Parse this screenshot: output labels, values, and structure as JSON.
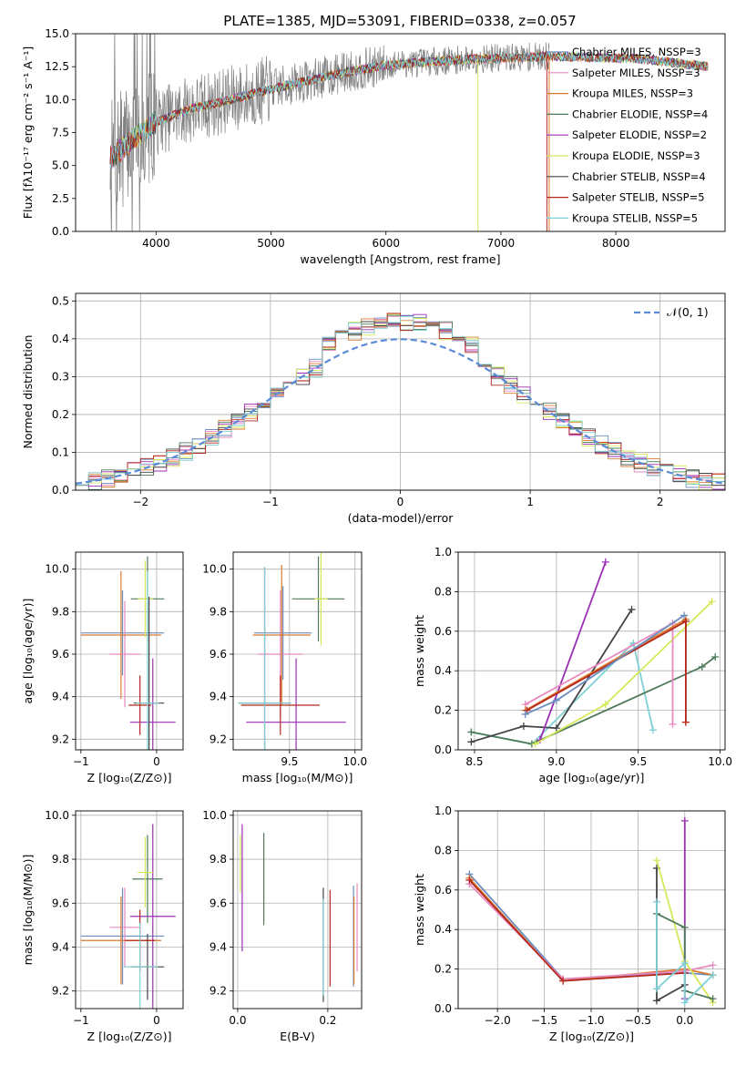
{
  "figure_title": "PLATE=1385, MJD=53091, FIBERID=0338, z=0.057",
  "colors": {
    "cm": "#6c8ebf",
    "sm": "#e88ac0",
    "km": "#d97a30",
    "ce": "#4e7a5a",
    "se": "#9a2fb5",
    "ke": "#d6e85a",
    "cs": "#444444",
    "ss": "#b5281e",
    "ks": "#7fd0d6",
    "data": "#808080",
    "normal": "#5b8bd6"
  },
  "chart_data": [
    {
      "id": "spectrum",
      "type": "line",
      "xlabel": "wavelength [Angstrom, rest frame]",
      "ylabel": "Flux [fλ10⁻¹⁷ erg cm⁻² s⁻¹ A⁻¹]",
      "xlim": [
        3300,
        8950
      ],
      "ylim": [
        0,
        15
      ],
      "xticks": [
        "4000",
        "5000",
        "6000",
        "7000",
        "8000"
      ],
      "yticks": [
        "0.0",
        "2.5",
        "5.0",
        "7.5",
        "10.0",
        "12.5",
        "15.0"
      ],
      "grid": false,
      "legend_position": "right",
      "legend": [
        {
          "label": "Chabrier MILES, NSSP=3",
          "color_key": "cm"
        },
        {
          "label": "Salpeter MILES, NSSP=3",
          "color_key": "sm"
        },
        {
          "label": "Kroupa MILES, NSSP=3",
          "color_key": "km"
        },
        {
          "label": "Chabrier ELODIE, NSSP=4",
          "color_key": "ce"
        },
        {
          "label": "Salpeter ELODIE, NSSP=2",
          "color_key": "se"
        },
        {
          "label": "Kroupa ELODIE, NSSP=3",
          "color_key": "ke"
        },
        {
          "label": "Chabrier STELIB, NSSP=4",
          "color_key": "cs"
        },
        {
          "label": "Salpeter STELIB, NSSP=5",
          "color_key": "ss"
        },
        {
          "label": "Kroupa STELIB, NSSP=5",
          "color_key": "ks"
        }
      ],
      "continuum": [
        [
          3600,
          5.5
        ],
        [
          3800,
          7.0
        ],
        [
          4000,
          8.3
        ],
        [
          4300,
          9.3
        ],
        [
          4600,
          9.9
        ],
        [
          5000,
          10.8
        ],
        [
          5300,
          11.4
        ],
        [
          5600,
          12.0
        ],
        [
          6000,
          12.6
        ],
        [
          6400,
          12.9
        ],
        [
          6800,
          13.1
        ],
        [
          7200,
          13.2
        ],
        [
          7400,
          13.3
        ],
        [
          7800,
          13.2
        ],
        [
          8200,
          13.1
        ],
        [
          8600,
          12.7
        ],
        [
          8800,
          12.5
        ]
      ]
    },
    {
      "id": "residuals",
      "type": "histogram",
      "xlabel": "(data-model)/error",
      "ylabel": "Normed distribution",
      "xlim": [
        -2.5,
        2.5
      ],
      "ylim": [
        0,
        0.52
      ],
      "xticks": [
        "−2",
        "−1",
        "0",
        "1",
        "2"
      ],
      "yticks": [
        "0.0",
        "0.1",
        "0.2",
        "0.3",
        "0.4",
        "0.5"
      ],
      "grid": true,
      "legend_position": "top-right",
      "legend": [
        {
          "label": "𝒩(0, 1)",
          "color_key": "normal"
        }
      ],
      "bin_width": 0.1
    },
    {
      "id": "age_vs_z",
      "type": "errorbar",
      "xlabel": "Z [log₁₀(Z/Z⊙)]",
      "ylabel": "age  [log₁₀(age/yr)]",
      "xlim": [
        -1.07,
        0.35
      ],
      "ylim": [
        9.15,
        10.08
      ],
      "xticks": [
        "−1",
        "0"
      ],
      "yticks": [
        "9.2",
        "9.4",
        "9.6",
        "9.8",
        "10.0"
      ],
      "grid": true,
      "points": [
        {
          "c": "cm",
          "x": -0.45,
          "y": 9.7,
          "xerr": 0.55,
          "yerr": 0.2
        },
        {
          "c": "sm",
          "x": -0.42,
          "y": 9.6,
          "xerr": 0.2,
          "yerr": 0.25
        },
        {
          "c": "km",
          "x": -0.47,
          "y": 9.69,
          "xerr": 0.53,
          "yerr": 0.3
        },
        {
          "c": "ce",
          "x": -0.12,
          "y": 9.86,
          "xerr": 0.22,
          "yerr": 0.2
        },
        {
          "c": "se",
          "x": -0.05,
          "y": 9.28,
          "xerr": 0.3,
          "yerr": 0.3
        },
        {
          "c": "ke",
          "x": -0.15,
          "y": 9.86,
          "xerr": 0.1,
          "yerr": 0.18
        },
        {
          "c": "cs",
          "x": -0.1,
          "y": 9.37,
          "xerr": 0.2,
          "yerr": 0.5
        },
        {
          "c": "ss",
          "x": -0.22,
          "y": 9.36,
          "xerr": 0.15,
          "yerr": 0.14
        },
        {
          "c": "ks",
          "x": -0.12,
          "y": 9.37,
          "xerr": 0.15,
          "yerr": 0.62
        }
      ]
    },
    {
      "id": "age_vs_mass",
      "type": "errorbar",
      "xlabel": "mass [log₁₀(M/M⊙)]",
      "ylabel": "",
      "xlim": [
        9.07,
        10.05
      ],
      "ylim": [
        9.15,
        10.08
      ],
      "xticks": [
        "9.5",
        "10.0"
      ],
      "yticks": [
        "9.2",
        "9.4",
        "9.6",
        "9.8",
        "10.0"
      ],
      "grid": true,
      "points": [
        {
          "c": "cm",
          "x": 9.45,
          "y": 9.7,
          "xerr": 0.22,
          "yerr": 0.22
        },
        {
          "c": "sm",
          "x": 9.43,
          "y": 9.6,
          "xerr": 0.17,
          "yerr": 0.3
        },
        {
          "c": "km",
          "x": 9.44,
          "y": 9.69,
          "xerr": 0.22,
          "yerr": 0.33
        },
        {
          "c": "ce",
          "x": 9.72,
          "y": 9.86,
          "xerr": 0.2,
          "yerr": 0.2
        },
        {
          "c": "se",
          "x": 9.55,
          "y": 9.28,
          "xerr": 0.38,
          "yerr": 0.3
        },
        {
          "c": "ke",
          "x": 9.74,
          "y": 9.86,
          "xerr": 0.05,
          "yerr": 0.22
        },
        {
          "c": "cs",
          "x": 9.31,
          "y": 9.37,
          "xerr": 0.2,
          "yerr": 0.64
        },
        {
          "c": "ss",
          "x": 9.43,
          "y": 9.36,
          "xerr": 0.3,
          "yerr": 0.14
        },
        {
          "c": "ks",
          "x": 9.31,
          "y": 9.37,
          "xerr": 0.2,
          "yerr": 0.64
        }
      ]
    },
    {
      "id": "weight_vs_age",
      "type": "line",
      "xlabel": "age  [log₁₀(age/yr)]",
      "ylabel": "mass weight",
      "xlim": [
        8.4,
        10.03
      ],
      "ylim": [
        0,
        1
      ],
      "xticks": [
        "8.5",
        "9.0",
        "9.5",
        "10.0"
      ],
      "yticks": [
        "0.0",
        "0.2",
        "0.4",
        "0.6",
        "0.8",
        "1.0"
      ],
      "grid": true,
      "series": [
        {
          "c": "ks",
          "points": [
            [
              8.48,
              0.09
            ],
            [
              8.85,
              0.03
            ],
            [
              9.47,
              0.54
            ],
            [
              9.59,
              0.1
            ]
          ]
        },
        {
          "c": "ce",
          "points": [
            [
              8.48,
              0.09
            ],
            [
              8.85,
              0.03
            ],
            [
              9.89,
              0.42
            ],
            [
              9.97,
              0.47
            ]
          ]
        },
        {
          "c": "cs",
          "points": [
            [
              8.48,
              0.04
            ],
            [
              8.8,
              0.12
            ],
            [
              9.0,
              0.11
            ],
            [
              9.46,
              0.71
            ]
          ]
        },
        {
          "c": "se",
          "points": [
            [
              8.9,
              0.05
            ],
            [
              9.3,
              0.95
            ]
          ]
        },
        {
          "c": "ke",
          "points": [
            [
              8.87,
              0.03
            ],
            [
              9.3,
              0.23
            ],
            [
              9.95,
              0.75
            ]
          ]
        },
        {
          "c": "sm",
          "points": [
            [
              8.81,
              0.23
            ],
            [
              9.71,
              0.64
            ],
            [
              9.71,
              0.13
            ]
          ]
        },
        {
          "c": "km",
          "points": [
            [
              8.81,
              0.2
            ],
            [
              9.79,
              0.66
            ],
            [
              9.79,
              0.14
            ]
          ]
        },
        {
          "c": "ss",
          "points": [
            [
              8.82,
              0.2
            ],
            [
              9.79,
              0.65
            ],
            [
              9.79,
              0.14
            ]
          ]
        },
        {
          "c": "cm",
          "points": [
            [
              8.81,
              0.18
            ],
            [
              9.0,
              0.25
            ],
            [
              9.78,
              0.68
            ]
          ]
        }
      ]
    },
    {
      "id": "mass_vs_z",
      "type": "errorbar",
      "xlabel": "Z [log₁₀(Z/Z⊙)]",
      "ylabel": "mass [log₁₀(M/M⊙)]",
      "xlim": [
        -1.07,
        0.35
      ],
      "ylim": [
        9.12,
        10.02
      ],
      "xticks": [
        "−1",
        "0"
      ],
      "yticks": [
        "9.2",
        "9.4",
        "9.6",
        "9.8",
        "10.0"
      ],
      "grid": true,
      "points": [
        {
          "c": "cm",
          "x": -0.45,
          "y": 9.45,
          "xerr": 0.55,
          "yerr": 0.22
        },
        {
          "c": "sm",
          "x": -0.42,
          "y": 9.49,
          "xerr": 0.2,
          "yerr": 0.18
        },
        {
          "c": "km",
          "x": -0.47,
          "y": 9.43,
          "xerr": 0.53,
          "yerr": 0.2
        },
        {
          "c": "ce",
          "x": -0.12,
          "y": 9.71,
          "xerr": 0.2,
          "yerr": 0.2
        },
        {
          "c": "se",
          "x": -0.05,
          "y": 9.54,
          "xerr": 0.3,
          "yerr": 0.42
        },
        {
          "c": "ke",
          "x": -0.15,
          "y": 9.74,
          "xerr": 0.1,
          "yerr": 0.16
        },
        {
          "c": "cs",
          "x": -0.12,
          "y": 9.31,
          "xerr": 0.22,
          "yerr": 0.15
        },
        {
          "c": "ss",
          "x": -0.22,
          "y": 9.43,
          "xerr": 0.2,
          "yerr": 0.14
        },
        {
          "c": "ks",
          "x": -0.22,
          "y": 9.31,
          "xerr": 0.24,
          "yerr": 0.2
        }
      ]
    },
    {
      "id": "mass_vs_ebv",
      "type": "errorbar",
      "xlabel": "E(B-V)",
      "ylabel": "",
      "xlim": [
        -0.01,
        0.275
      ],
      "ylim": [
        9.12,
        10.02
      ],
      "xticks": [
        "0.0",
        "0.2"
      ],
      "yticks": [
        "9.2",
        "9.4",
        "9.6",
        "9.8",
        "10.0"
      ],
      "grid": true,
      "points": [
        {
          "c": "cm",
          "x": 0.257,
          "y": 9.45,
          "xerr": 0,
          "yerr": 0.23
        },
        {
          "c": "sm",
          "x": 0.265,
          "y": 9.49,
          "xerr": 0,
          "yerr": 0.2
        },
        {
          "c": "km",
          "x": 0.258,
          "y": 9.43,
          "xerr": 0,
          "yerr": 0.2
        },
        {
          "c": "ce",
          "x": 0.058,
          "y": 9.71,
          "xerr": 0,
          "yerr": 0.21
        },
        {
          "c": "se",
          "x": 0.01,
          "y": 9.67,
          "xerr": 0,
          "yerr": 0.29
        },
        {
          "c": "ke",
          "x": 0.006,
          "y": 9.78,
          "xerr": 0,
          "yerr": 0.13
        },
        {
          "c": "cs",
          "x": 0.19,
          "y": 9.41,
          "xerr": 0,
          "yerr": 0.26
        },
        {
          "c": "ss",
          "x": 0.205,
          "y": 9.44,
          "xerr": 0,
          "yerr": 0.22
        },
        {
          "c": "ks",
          "x": 0.19,
          "y": 9.4,
          "xerr": 0,
          "yerr": 0.22
        }
      ]
    },
    {
      "id": "weight_vs_z",
      "type": "line",
      "xlabel": "Z [log₁₀(Z/Z⊙)]",
      "ylabel": "mass weight",
      "xlim": [
        -2.42,
        0.43
      ],
      "ylim": [
        0,
        1
      ],
      "xticks": [
        "−2.0",
        "−1.5",
        "−1.0",
        "−0.5",
        "0.0"
      ],
      "yticks": [
        "0.0",
        "0.2",
        "0.4",
        "0.6",
        "0.8",
        "1.0"
      ],
      "grid": true,
      "series": [
        {
          "c": "cm",
          "points": [
            [
              -2.3,
              0.68
            ],
            [
              -1.3,
              0.15
            ],
            [
              0.0,
              0.18
            ],
            [
              0.3,
              0.17
            ]
          ]
        },
        {
          "c": "km",
          "points": [
            [
              -2.3,
              0.66
            ],
            [
              -1.3,
              0.14
            ],
            [
              0.0,
              0.2
            ],
            [
              0.3,
              0.17
            ]
          ]
        },
        {
          "c": "sm",
          "points": [
            [
              -2.3,
              0.63
            ],
            [
              -1.3,
              0.15
            ],
            [
              0.0,
              0.19
            ],
            [
              0.3,
              0.22
            ]
          ]
        },
        {
          "c": "ss",
          "points": [
            [
              -2.3,
              0.65
            ],
            [
              -1.3,
              0.14
            ],
            [
              0.0,
              0.18
            ]
          ]
        },
        {
          "c": "cs",
          "points": [
            [
              -0.3,
              0.71
            ],
            [
              -0.3,
              0.04
            ],
            [
              0.0,
              0.12
            ]
          ]
        },
        {
          "c": "ke",
          "points": [
            [
              -0.3,
              0.75
            ],
            [
              0.0,
              0.24
            ],
            [
              0.3,
              0.03
            ]
          ]
        },
        {
          "c": "se",
          "points": [
            [
              0.0,
              0.95
            ],
            [
              0.0,
              0.05
            ]
          ]
        },
        {
          "c": "ce",
          "points": [
            [
              -0.3,
              0.48
            ],
            [
              0.0,
              0.41
            ],
            [
              0.0,
              0.09
            ],
            [
              0.3,
              0.05
            ]
          ]
        },
        {
          "c": "ks",
          "points": [
            [
              -0.3,
              0.54
            ],
            [
              -0.3,
              0.1
            ],
            [
              0.0,
              0.23
            ],
            [
              0.0,
              0.03
            ],
            [
              0.3,
              0.17
            ]
          ]
        }
      ]
    }
  ]
}
